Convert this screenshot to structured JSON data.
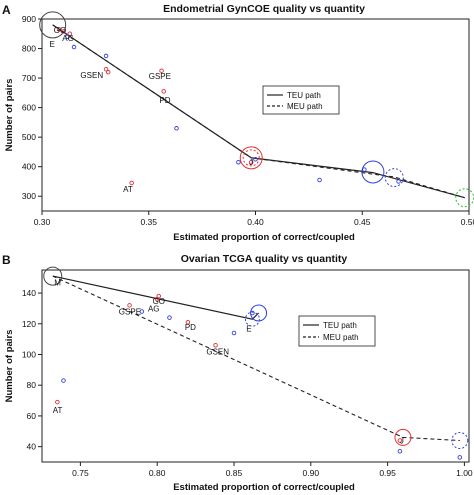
{
  "chart_data": [
    {
      "type": "scatter",
      "panel": "A",
      "title": "Endometrial GynCOE quality vs quantity",
      "xlabel": "Estimated proportion of correct/coupled",
      "ylabel": "Number of pairs",
      "xlim": [
        0.3,
        0.5
      ],
      "ylim": [
        250,
        900
      ],
      "xticks": [
        "0.30",
        "0.35",
        "0.40",
        "0.45",
        "0.50"
      ],
      "xtick_values": [
        0.3,
        0.35,
        0.4,
        0.45,
        0.5
      ],
      "yticks": [
        "300",
        "400",
        "500",
        "600",
        "700",
        "800",
        "900"
      ],
      "ytick_values": [
        300,
        400,
        500,
        600,
        700,
        800,
        900
      ],
      "legend": [
        "TEU path",
        "MEU path"
      ],
      "legend_position": "right",
      "teu_path": {
        "x": [
          0.305,
          0.398,
          0.455,
          0.498
        ],
        "y": [
          880,
          430,
          380,
          295
        ]
      },
      "meu_path": {
        "x": [
          0.305,
          0.398,
          0.465,
          0.498
        ],
        "y": [
          880,
          430,
          365,
          295
        ]
      },
      "points_red": {
        "x": [
          0.308,
          0.31,
          0.313,
          0.33,
          0.331,
          0.356,
          0.357,
          0.342,
          0.398
        ],
        "y": [
          865,
          858,
          850,
          730,
          720,
          725,
          655,
          345,
          415
        ]
      },
      "points_blue": {
        "x": [
          0.312,
          0.315,
          0.33,
          0.363,
          0.392,
          0.4,
          0.43,
          0.451,
          0.467
        ],
        "y": [
          840,
          805,
          775,
          530,
          415,
          425,
          355,
          390,
          350
        ]
      },
      "circles": [
        {
          "x": 0.305,
          "y": 880,
          "color": "#444444",
          "dashed": false,
          "r": 13
        },
        {
          "x": 0.398,
          "y": 430,
          "color": "#e03030",
          "dashed": false,
          "r": 11
        },
        {
          "x": 0.398,
          "y": 430,
          "color": "#e03030",
          "dashed": true,
          "r": 8
        },
        {
          "x": 0.455,
          "y": 382,
          "color": "#3040e0",
          "dashed": false,
          "r": 11
        },
        {
          "x": 0.465,
          "y": 363,
          "color": "#3040e0",
          "dashed": true,
          "r": 9
        },
        {
          "x": 0.498,
          "y": 295,
          "color": "#20c020",
          "dashed": true,
          "r": 9
        }
      ],
      "labels": [
        {
          "text": "GO",
          "x": 0.3055,
          "y": 852
        },
        {
          "text": "AG",
          "x": 0.3095,
          "y": 825
        },
        {
          "text": "E",
          "x": 0.3035,
          "y": 805
        },
        {
          "text": "GSEN",
          "x": 0.318,
          "y": 700
        },
        {
          "text": "GSPE",
          "x": 0.35,
          "y": 697
        },
        {
          "text": "PD",
          "x": 0.355,
          "y": 615
        },
        {
          "text": "AT",
          "x": 0.338,
          "y": 315
        },
        {
          "text": "J",
          "x": 0.397,
          "y": 405
        }
      ]
    },
    {
      "type": "scatter",
      "panel": "B",
      "title": "Ovarian TCGA quality vs quantity",
      "xlabel": "Estimated proportion of correct/coupled",
      "ylabel": "Number of pairs",
      "xlim": [
        0.725,
        1.003
      ],
      "ylim": [
        30,
        155
      ],
      "xticks": [
        "0.75",
        "0.80",
        "0.85",
        "0.90",
        "0.95",
        "1.00"
      ],
      "xtick_values": [
        0.75,
        0.8,
        0.85,
        0.9,
        0.95,
        1.0
      ],
      "yticks": [
        "40",
        "60",
        "80",
        "100",
        "120",
        "140"
      ],
      "ytick_values": [
        40,
        60,
        80,
        100,
        120,
        140
      ],
      "legend": [
        "TEU path",
        "MEU path"
      ],
      "legend_position": "right",
      "teu_path": {
        "x": [
          0.732,
          0.862,
          0.866
        ],
        "y": [
          151,
          123,
          127
        ]
      },
      "meu_path": {
        "x": [
          0.732,
          0.96,
          0.997
        ],
        "y": [
          151,
          46,
          44
        ]
      },
      "points_red": {
        "x": [
          0.735,
          0.782,
          0.8,
          0.801,
          0.82,
          0.838,
          0.958
        ],
        "y": [
          69,
          132,
          136,
          138,
          121,
          106,
          44
        ]
      },
      "points_blue": {
        "x": [
          0.739,
          0.79,
          0.808,
          0.85,
          0.862,
          0.997,
          0.958
        ],
        "y": [
          83,
          128,
          124,
          114,
          127,
          33,
          37
        ]
      },
      "circles": [
        {
          "x": 0.732,
          "y": 151,
          "color": "#444444",
          "dashed": false,
          "r": 9
        },
        {
          "x": 0.866,
          "y": 127,
          "color": "#3040e0",
          "dashed": false,
          "r": 8
        },
        {
          "x": 0.862,
          "y": 123,
          "color": "#3040e0",
          "dashed": true,
          "r": 7
        },
        {
          "x": 0.96,
          "y": 46,
          "color": "#e03030",
          "dashed": false,
          "r": 8
        },
        {
          "x": 0.997,
          "y": 44,
          "color": "#3040e0",
          "dashed": true,
          "r": 8
        }
      ],
      "labels": [
        {
          "text": "M",
          "x": 0.733,
          "y": 145
        },
        {
          "text": "GSPE",
          "x": 0.775,
          "y": 126
        },
        {
          "text": "AG",
          "x": 0.794,
          "y": 128
        },
        {
          "text": "GO",
          "x": 0.797,
          "y": 133
        },
        {
          "text": "PD",
          "x": 0.818,
          "y": 116
        },
        {
          "text": "GSEN",
          "x": 0.832,
          "y": 100
        },
        {
          "text": "E",
          "x": 0.858,
          "y": 115
        },
        {
          "text": "AT",
          "x": 0.732,
          "y": 62
        },
        {
          "text": "J",
          "x": 0.958,
          "y": 42
        }
      ]
    }
  ]
}
